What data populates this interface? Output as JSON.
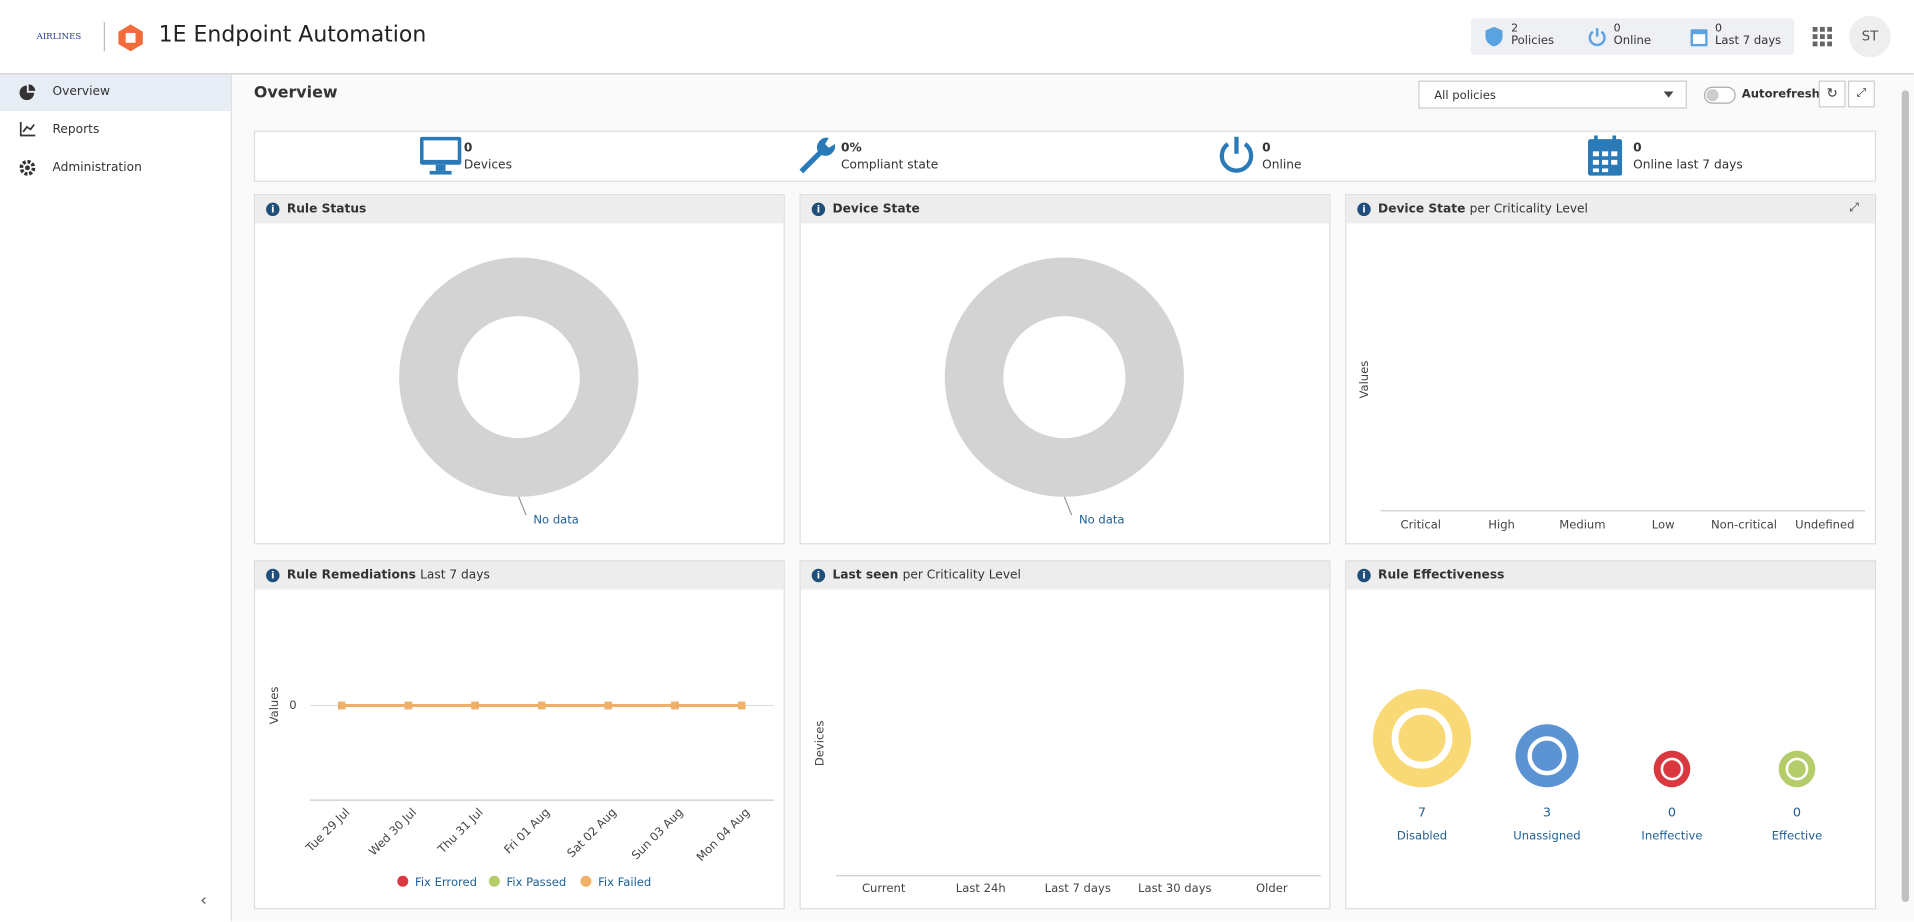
{
  "header": {
    "brand": "AIRLINES",
    "title": "1E Endpoint Automation",
    "stats": [
      {
        "value": 2,
        "label": "Policies"
      },
      {
        "value": 0,
        "label": "Online"
      },
      {
        "value": 0,
        "label": "Last 7 days"
      }
    ],
    "user": "ST"
  },
  "nav": [
    "Overview",
    "Reports",
    "Administration"
  ],
  "page": {
    "title": "Overview",
    "filter": "All policies",
    "autorefresh": "Autorefresh"
  },
  "summary": [
    {
      "value": 0,
      "label": "Devices"
    },
    {
      "value": "0%",
      "label": "Compliant state"
    },
    {
      "value": 0,
      "label": "Online"
    },
    {
      "value": 0,
      "label": "Online last 7 days"
    }
  ],
  "panels": {
    "rule_status": {
      "title": "Rule Status",
      "empty": "No data"
    },
    "device_state": {
      "title": "Device State",
      "empty": "No data"
    },
    "criticality": {
      "title": "Device State",
      "subtitle": "per Criticality Level",
      "ylabel": "Values",
      "categories": [
        "Critical",
        "High",
        "Medium",
        "Low",
        "Non-critical",
        "Undefined"
      ]
    },
    "remediations": {
      "type": "line",
      "title": "Rule Remediations",
      "subtitle": "Last 7 days",
      "ylabel": "Values",
      "ylim": [
        -1,
        1
      ],
      "yticks": [
        0
      ],
      "categories": [
        "Tue 29 Jul",
        "Wed 30 Jul",
        "Thu 31 Jul",
        "Fri 01 Aug",
        "Sat 02 Aug",
        "Sun 03 Aug",
        "Mon 04 Aug"
      ],
      "series": [
        {
          "name": "Fix Errored",
          "color": "#d9383f",
          "values": [
            0,
            0,
            0,
            0,
            0,
            0,
            0
          ]
        },
        {
          "name": "Fix Passed",
          "color": "#b5cc6b",
          "values": [
            0,
            0,
            0,
            0,
            0,
            0,
            0
          ]
        },
        {
          "name": "Fix Failed",
          "color": "#f0b068",
          "values": [
            0,
            0,
            0,
            0,
            0,
            0,
            0
          ]
        }
      ]
    },
    "last_seen": {
      "title": "Last seen",
      "subtitle": "per Criticality Level",
      "ylabel": "Devices",
      "categories": [
        "Current",
        "Last 24h",
        "Last 7 days",
        "Last 30 days",
        "Older"
      ]
    },
    "effectiveness": {
      "title": "Rule Effectiveness",
      "items": [
        {
          "value": 7,
          "label": "Disabled",
          "color": "#f9d976"
        },
        {
          "value": 3,
          "label": "Unassigned",
          "color": "#5b93d3"
        },
        {
          "value": 0,
          "label": "Ineffective",
          "color": "#d9383f"
        },
        {
          "value": 0,
          "label": "Effective",
          "color": "#b5cc6b"
        }
      ]
    }
  }
}
